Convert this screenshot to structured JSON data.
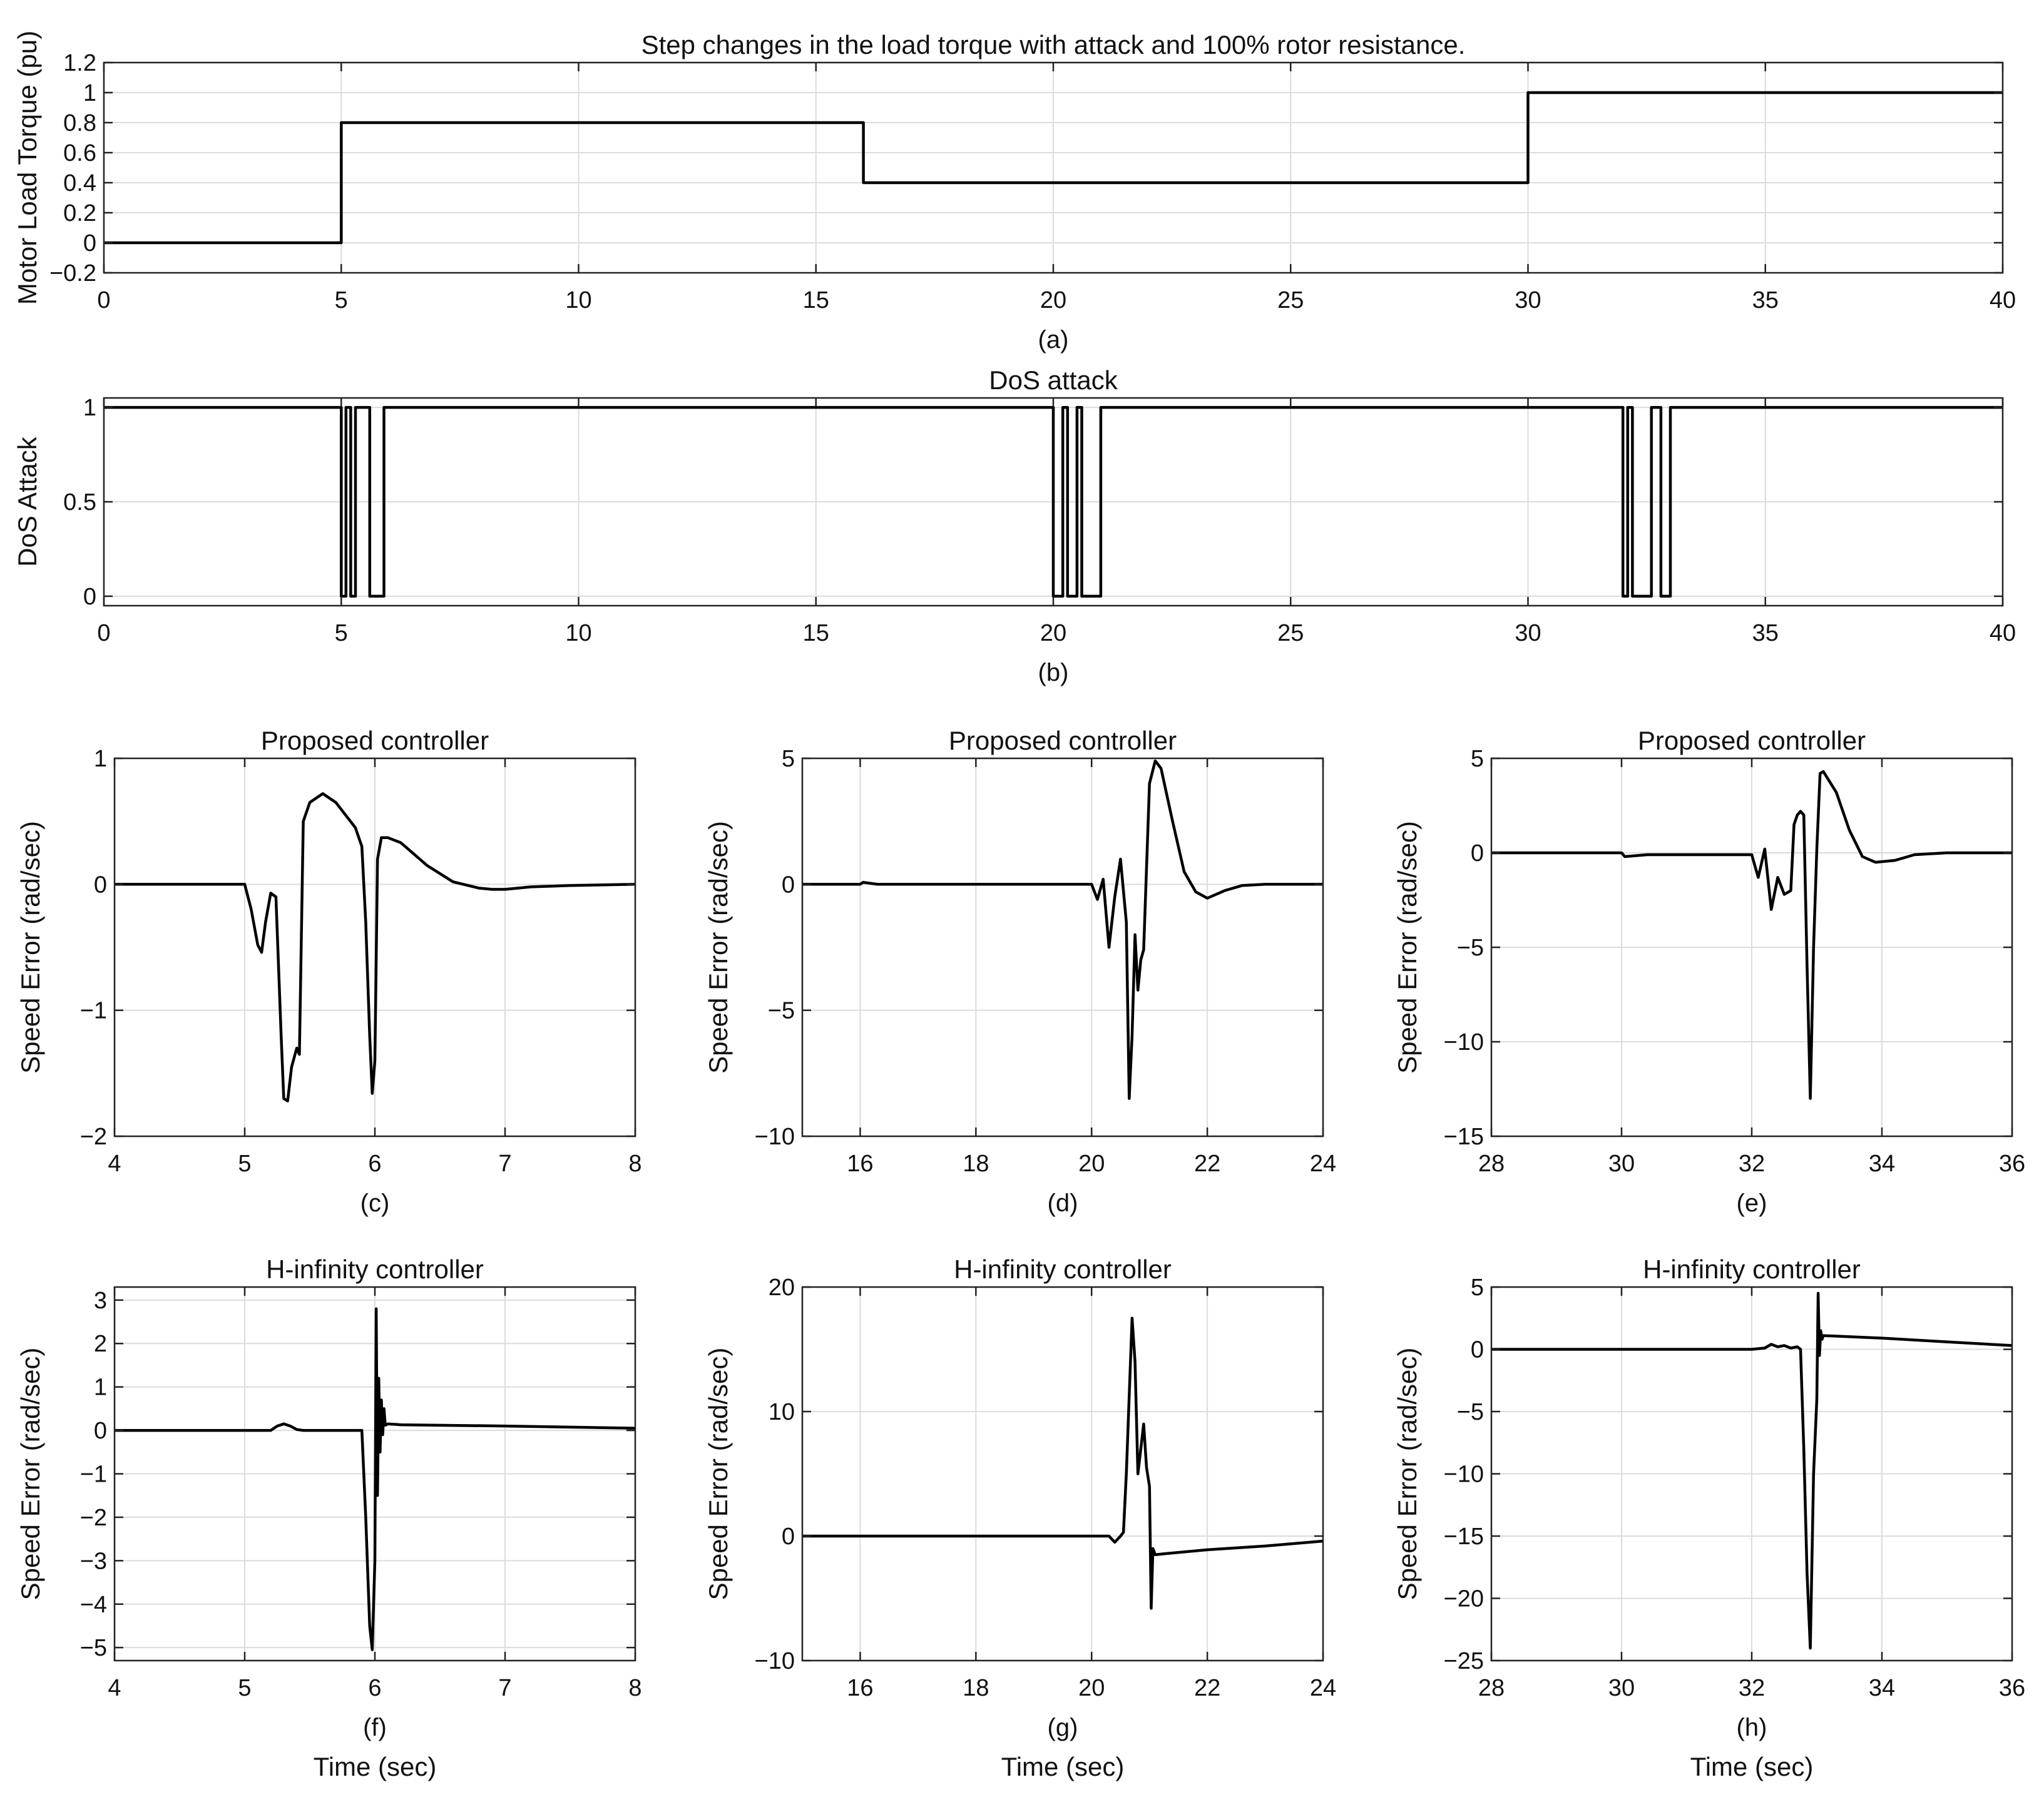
{
  "figure": {
    "background": "#ffffff",
    "line_color": "#000000",
    "grid_color": "#dcdcdc"
  },
  "chart_data": [
    {
      "id": "a",
      "type": "line",
      "title": "Step changes in the load torque with attack and 100% rotor resistance.",
      "xlabel": "",
      "ylabel": "Motor Load Torque (pu)",
      "caption": "(a)",
      "xlim": [
        0,
        40
      ],
      "ylim": [
        -0.2,
        1.2
      ],
      "xticks": [
        0,
        5,
        10,
        15,
        20,
        25,
        30,
        35,
        40
      ],
      "yticks": [
        -0.2,
        0,
        0.2,
        0.4,
        0.6,
        0.8,
        1,
        1.2
      ],
      "grid": true,
      "series": [
        {
          "x": [
            0,
            5,
            5,
            16,
            16,
            30,
            30,
            40
          ],
          "y": [
            0,
            0,
            0.8,
            0.8,
            0.4,
            0.4,
            1,
            1
          ]
        }
      ]
    },
    {
      "id": "b",
      "type": "line",
      "title": "DoS attack",
      "xlabel": "",
      "ylabel": "DoS Attack",
      "caption": "(b)",
      "xlim": [
        0,
        40
      ],
      "ylim": [
        -0.05,
        1.05
      ],
      "xticks": [
        0,
        5,
        10,
        15,
        20,
        25,
        30,
        35,
        40
      ],
      "yticks": [
        0,
        0.5,
        1
      ],
      "grid": true,
      "series": [
        {
          "x": [
            0,
            5.0,
            5.0,
            5.1,
            5.1,
            5.2,
            5.2,
            5.3,
            5.3,
            5.6,
            5.6,
            5.9,
            5.9,
            6.0,
            6.0,
            20.0,
            20.0,
            20.2,
            20.2,
            20.3,
            20.3,
            20.5,
            20.5,
            20.6,
            20.6,
            21.0,
            21.0,
            32.0,
            32.0,
            32.1,
            32.1,
            32.2,
            32.2,
            32.6,
            32.6,
            32.8,
            32.8,
            33.0,
            33.0,
            40
          ],
          "y": [
            1,
            1,
            0,
            0,
            1,
            1,
            0,
            0,
            1,
            1,
            0,
            0,
            1,
            1,
            1,
            1,
            0,
            0,
            1,
            1,
            0,
            0,
            1,
            1,
            0,
            0,
            1,
            1,
            0,
            0,
            1,
            1,
            0,
            0,
            1,
            1,
            0,
            0,
            1,
            1
          ]
        }
      ]
    },
    {
      "id": "c",
      "type": "line",
      "title": "Proposed controller",
      "xlabel": "",
      "ylabel": "Speed Error (rad/sec)",
      "caption": "(c)",
      "xlim": [
        4,
        8
      ],
      "ylim": [
        -2,
        1
      ],
      "xticks": [
        4,
        5,
        6,
        7,
        8
      ],
      "yticks": [
        -2,
        -1,
        0,
        1
      ],
      "grid": true,
      "series": [
        {
          "x": [
            4,
            5.0,
            5.05,
            5.1,
            5.13,
            5.16,
            5.2,
            5.24,
            5.28,
            5.3,
            5.33,
            5.36,
            5.4,
            5.42,
            5.45,
            5.5,
            5.6,
            5.7,
            5.85,
            5.9,
            5.93,
            5.96,
            5.98,
            6.0,
            6.02,
            6.05,
            6.1,
            6.2,
            6.4,
            6.6,
            6.8,
            6.9,
            7.0,
            7.2,
            7.5,
            8.0
          ],
          "y": [
            0,
            0,
            -0.2,
            -0.48,
            -0.54,
            -0.3,
            -0.07,
            -0.1,
            -1.2,
            -1.7,
            -1.72,
            -1.45,
            -1.3,
            -1.35,
            0.5,
            0.65,
            0.72,
            0.65,
            0.45,
            0.3,
            -0.3,
            -1.2,
            -1.66,
            -1.4,
            0.2,
            0.37,
            0.37,
            0.33,
            0.15,
            0.02,
            -0.03,
            -0.04,
            -0.04,
            -0.02,
            -0.01,
            0
          ]
        }
      ]
    },
    {
      "id": "d",
      "type": "line",
      "title": "Proposed controller",
      "xlabel": "",
      "ylabel": "Speed Error (rad/sec)",
      "caption": "(d)",
      "xlim": [
        15,
        24
      ],
      "ylim": [
        -10,
        5
      ],
      "xticks": [
        16,
        18,
        20,
        22,
        24
      ],
      "yticks": [
        -10,
        -5,
        0,
        5
      ],
      "grid": true,
      "series": [
        {
          "x": [
            15,
            16,
            16.05,
            16.3,
            20.0,
            20.1,
            20.2,
            20.3,
            20.4,
            20.5,
            20.6,
            20.65,
            20.7,
            20.75,
            20.8,
            20.85,
            20.9,
            21.0,
            21.1,
            21.2,
            21.4,
            21.6,
            21.8,
            22.0,
            22.3,
            22.6,
            23.0,
            24.0
          ],
          "y": [
            0,
            0,
            0.08,
            0,
            0,
            -0.6,
            0.2,
            -2.5,
            -0.5,
            1.0,
            -1.5,
            -8.5,
            -6.0,
            -2.0,
            -4.2,
            -3.0,
            -2.6,
            4.0,
            4.9,
            4.6,
            2.5,
            0.5,
            -0.3,
            -0.55,
            -0.25,
            -0.05,
            0,
            0
          ]
        }
      ]
    },
    {
      "id": "e",
      "type": "line",
      "title": "Proposed controller",
      "xlabel": "",
      "ylabel": "Speed Error (rad/sec)",
      "caption": "(e)",
      "xlim": [
        28,
        36
      ],
      "ylim": [
        -15,
        5
      ],
      "xticks": [
        28,
        30,
        32,
        34,
        36
      ],
      "yticks": [
        -15,
        -10,
        -5,
        0,
        5
      ],
      "grid": true,
      "series": [
        {
          "x": [
            28,
            30,
            30.05,
            30.4,
            32.0,
            32.1,
            32.2,
            32.3,
            32.4,
            32.5,
            32.6,
            32.65,
            32.7,
            32.75,
            32.8,
            32.85,
            32.9,
            32.95,
            33.0,
            33.05,
            33.1,
            33.3,
            33.5,
            33.7,
            33.9,
            34.2,
            34.5,
            35.0,
            36.0
          ],
          "y": [
            0,
            0,
            -0.2,
            -0.1,
            -0.1,
            -1.3,
            0.2,
            -3.0,
            -1.3,
            -2.2,
            -2.0,
            1.5,
            2.0,
            2.2,
            2.0,
            -6.0,
            -13.0,
            -5.0,
            0.2,
            4.2,
            4.3,
            3.2,
            1.2,
            -0.2,
            -0.5,
            -0.4,
            -0.1,
            0,
            0
          ]
        }
      ]
    },
    {
      "id": "f",
      "type": "line",
      "title": "H-infinity controller",
      "xlabel": "Time (sec)",
      "ylabel": "Speed Error (rad/sec)",
      "caption": "(f)",
      "xlim": [
        4,
        8
      ],
      "ylim": [
        -5.3,
        3.3
      ],
      "xticks": [
        4,
        5,
        6,
        7,
        8
      ],
      "yticks": [
        -5,
        -4,
        -3,
        -2,
        -1,
        0,
        1,
        2,
        3
      ],
      "grid": true,
      "series": [
        {
          "x": [
            4,
            5.2,
            5.25,
            5.3,
            5.35,
            5.4,
            5.45,
            5.9,
            5.93,
            5.96,
            5.98,
            6.0,
            6.01,
            6.02,
            6.03,
            6.04,
            6.05,
            6.06,
            6.07,
            6.08,
            6.1,
            6.2,
            7.0,
            8.0
          ],
          "y": [
            0,
            0,
            0.1,
            0.15,
            0.1,
            0.02,
            0,
            0,
            -2.0,
            -4.5,
            -5.05,
            -3.0,
            2.8,
            -1.5,
            1.2,
            -0.5,
            0.7,
            -0.1,
            0.5,
            0.12,
            0.15,
            0.13,
            0.1,
            0.05
          ]
        }
      ]
    },
    {
      "id": "g",
      "type": "line",
      "title": "H-infinity controller",
      "xlabel": "Time (sec)",
      "ylabel": "Speed Error (rad/sec)",
      "caption": "(g)",
      "xlim": [
        15,
        24
      ],
      "ylim": [
        -10,
        20
      ],
      "xticks": [
        16,
        18,
        20,
        22,
        24
      ],
      "yticks": [
        -10,
        0,
        10,
        20
      ],
      "grid": true,
      "series": [
        {
          "x": [
            15,
            20.3,
            20.4,
            20.5,
            20.55,
            20.6,
            20.7,
            20.75,
            20.8,
            20.85,
            20.9,
            20.95,
            21.0,
            21.03,
            21.06,
            21.1,
            21.3,
            22.0,
            23.0,
            24.0
          ],
          "y": [
            0,
            0,
            -0.5,
            0,
            0.3,
            5.0,
            17.5,
            14.0,
            5.0,
            7.0,
            9.0,
            5.5,
            4.0,
            -5.8,
            -1.0,
            -1.5,
            -1.4,
            -1.1,
            -0.8,
            -0.4
          ]
        }
      ]
    },
    {
      "id": "h",
      "type": "line",
      "title": "H-infinity controller",
      "xlabel": "Time (sec)",
      "ylabel": "Speed Error (rad/sec)",
      "caption": "(h)",
      "xlim": [
        28,
        36
      ],
      "ylim": [
        -25,
        5
      ],
      "xticks": [
        28,
        30,
        32,
        34,
        36
      ],
      "yticks": [
        -25,
        -20,
        -15,
        -10,
        -5,
        0,
        5
      ],
      "grid": true,
      "series": [
        {
          "x": [
            28,
            32.0,
            32.2,
            32.3,
            32.4,
            32.5,
            32.6,
            32.7,
            32.75,
            32.8,
            32.85,
            32.9,
            32.95,
            33.0,
            33.02,
            33.04,
            33.06,
            33.08,
            33.1,
            34.0,
            35.0,
            36.0
          ],
          "y": [
            0,
            0,
            0.1,
            0.4,
            0.2,
            0.3,
            0.1,
            0.2,
            0,
            -8.0,
            -18.0,
            -24.0,
            -10.0,
            -4.0,
            4.5,
            -0.5,
            1.5,
            0.8,
            1.1,
            0.9,
            0.6,
            0.3
          ]
        }
      ]
    }
  ]
}
